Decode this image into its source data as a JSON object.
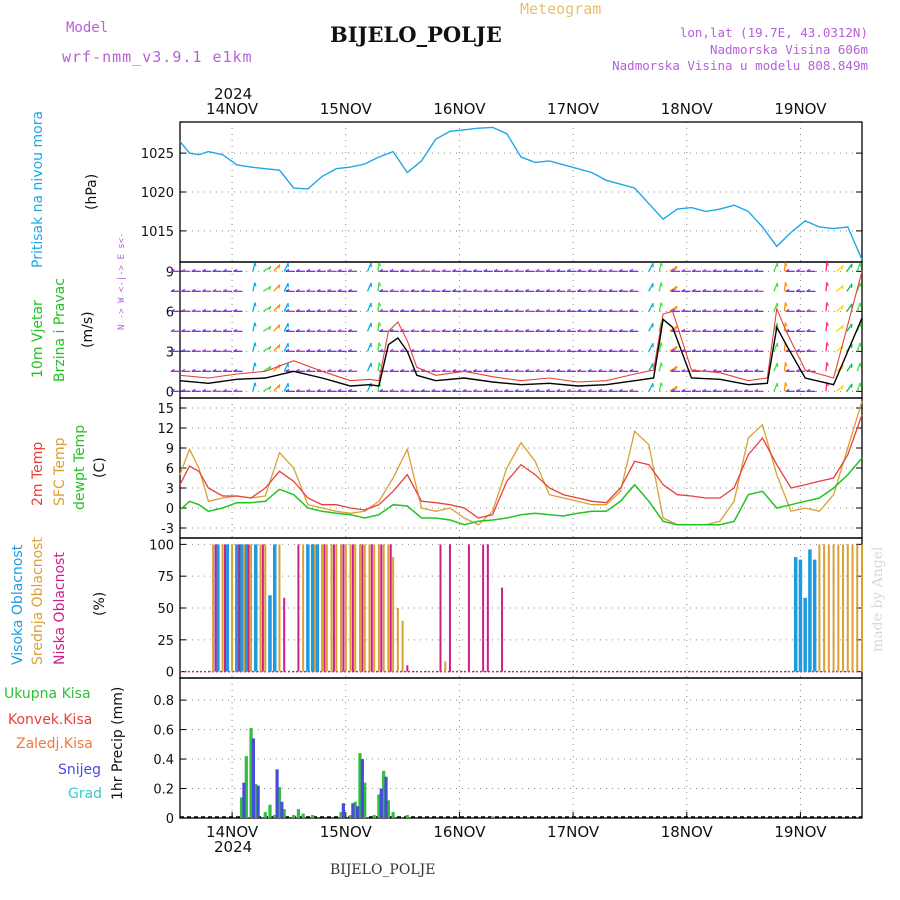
{
  "header": {
    "model_label": "Model",
    "model_name": "wrf-nmm_v3.9.1 e1km",
    "title": "BIJELO_POLJE",
    "meteogram_label": "Meteogram",
    "coords": "lon,lat (19.7E, 43.0312N)",
    "elevation": "Nadmorska Visina 606m",
    "model_elevation": "Nadmorska Visina u modelu 808.849m",
    "year_top": "2024",
    "year_bottom": "2024",
    "footer_station": "BIJELO_POLJE",
    "watermark": "made by Angel"
  },
  "colors": {
    "pressure": "#1ea7e8",
    "temp2m": "#e8403a",
    "sfc": "#d9a035",
    "dewpt": "#22c322",
    "high_cloud": "#1e9be0",
    "mid_cloud": "#d9a035",
    "low_cloud": "#cc1f8c",
    "total_precip": "#2fbf3a",
    "conv_precip": "#e8403a",
    "frozen_precip": "#ee7a3a",
    "snow": "#4a4adb",
    "hail": "#3ac8c8",
    "wind_line": "#000000",
    "title_purple": "#b860d8",
    "meteogram_gold": "#e8c06a"
  },
  "chart_data": [
    {
      "type": "line",
      "name": "pressure-panel",
      "ylabel": "Pritisak na nivou mora",
      "unit": "(hPa)",
      "yticks": [
        1015,
        1020,
        1025
      ],
      "ylim": [
        1011,
        1029
      ],
      "x_labels": [
        "14NOV",
        "15NOV",
        "16NOV",
        "17NOV",
        "18NOV",
        "19NOV"
      ],
      "series": [
        {
          "color_key": "pressure",
          "x": [
            0,
            2,
            4,
            6,
            9,
            12,
            15,
            18,
            21,
            24,
            27,
            30,
            33,
            36,
            39,
            42,
            45,
            48,
            51,
            54,
            57,
            60,
            63,
            66,
            69,
            72,
            75,
            78,
            81,
            84,
            87,
            90,
            93,
            96,
            99,
            102,
            105,
            108,
            111,
            114,
            117,
            120,
            123,
            126,
            129,
            132,
            135,
            138,
            141,
            144
          ],
          "values": [
            1026.5,
            1025,
            1024.8,
            1025.2,
            1024.8,
            1023.5,
            1023.2,
            1023,
            1022.8,
            1020.5,
            1020.4,
            1022,
            1023,
            1023.2,
            1023.6,
            1024.5,
            1025.2,
            1022.5,
            1024,
            1026.8,
            1027.8,
            1028,
            1028.2,
            1028.3,
            1027.5,
            1024.5,
            1023.8,
            1024,
            1023.5,
            1023,
            1022.5,
            1021.5,
            1021,
            1020.5,
            1018.5,
            1016.5,
            1017.8,
            1018,
            1017.5,
            1017.8,
            1018.3,
            1017.5,
            1015.5,
            1013,
            1014.8,
            1016.3,
            1015.5,
            1015.3,
            1015.5,
            1011.3
          ]
        }
      ]
    },
    {
      "type": "line",
      "name": "wind-panel",
      "ylabel": "10m Vjetar",
      "ylabel2": "Brzina i Pravac",
      "unit": "(m/s)",
      "compass": "N ->  W <-|-> E  s<-",
      "yticks": [
        0,
        3,
        6,
        9
      ],
      "ylim": [
        -0.5,
        9.7
      ],
      "arrow_rows": [
        0,
        1.5,
        3,
        4.5,
        6,
        7.5,
        9
      ],
      "series": [
        {
          "name": "wind-speed",
          "color_key": "wind_line",
          "x": [
            0,
            6,
            12,
            18,
            24,
            30,
            36,
            40,
            42,
            44,
            46,
            48,
            50,
            54,
            60,
            66,
            72,
            78,
            84,
            90,
            96,
            100,
            102,
            104,
            108,
            114,
            120,
            124,
            126,
            128,
            132,
            138,
            144
          ],
          "values": [
            0.8,
            0.6,
            0.9,
            1.0,
            1.5,
            1.0,
            0.4,
            0.5,
            0.4,
            3.5,
            4.0,
            3.0,
            1.2,
            0.8,
            1.0,
            0.7,
            0.5,
            0.6,
            0.4,
            0.5,
            0.8,
            1.0,
            5.4,
            4.8,
            1.0,
            0.9,
            0.5,
            0.6,
            4.8,
            3.5,
            1.0,
            0.5,
            5.5
          ]
        },
        {
          "name": "wind-gust",
          "color_key": "temp2m",
          "x": [
            0,
            6,
            12,
            18,
            24,
            30,
            36,
            40,
            42,
            44,
            46,
            48,
            50,
            54,
            60,
            66,
            72,
            78,
            84,
            90,
            96,
            100,
            102,
            104,
            108,
            114,
            120,
            124,
            126,
            128,
            132,
            138,
            144
          ],
          "values": [
            1.2,
            1.0,
            1.3,
            1.5,
            2.3,
            1.5,
            0.8,
            0.9,
            0.8,
            4.5,
            5.2,
            3.8,
            1.8,
            1.2,
            1.5,
            1.1,
            0.8,
            1.0,
            0.7,
            0.8,
            1.3,
            1.6,
            5.8,
            6.0,
            1.6,
            1.4,
            0.8,
            1.0,
            6.2,
            4.5,
            1.6,
            1.0,
            9.0
          ]
        }
      ]
    },
    {
      "type": "line",
      "name": "temperature-panel",
      "ylabel": "2m Temp",
      "ylabel2": "SFC Temp",
      "ylabel3": "dewpt Temp",
      "unit": "(C)",
      "yticks": [
        -3,
        0,
        3,
        6,
        9,
        12,
        15
      ],
      "ylim": [
        -4.5,
        16.5
      ],
      "series": [
        {
          "name": "2m Temp",
          "color_key": "temp2m",
          "x": [
            0,
            2,
            4,
            6,
            9,
            12,
            15,
            18,
            21,
            24,
            27,
            30,
            33,
            36,
            39,
            42,
            45,
            48,
            51,
            54,
            57,
            60,
            63,
            66,
            69,
            72,
            75,
            78,
            81,
            84,
            87,
            90,
            93,
            96,
            99,
            102,
            105,
            108,
            111,
            114,
            117,
            120,
            123,
            126,
            129,
            132,
            135,
            138,
            141,
            144
          ],
          "values": [
            3.5,
            6.3,
            5.5,
            3.0,
            1.8,
            1.8,
            1.5,
            3.0,
            5.5,
            4.0,
            1.5,
            0.5,
            0.5,
            0.0,
            -0.3,
            0.5,
            2.5,
            5.0,
            1.0,
            0.8,
            0.5,
            0.0,
            -1.5,
            -1.0,
            4.0,
            6.5,
            5.0,
            3.0,
            2.0,
            1.5,
            1.0,
            0.8,
            3.0,
            7.0,
            6.5,
            3.5,
            2.0,
            1.8,
            1.5,
            1.5,
            3.0,
            8.0,
            10.5,
            6.5,
            3.0,
            3.5,
            4.0,
            4.5,
            8.0,
            14.0
          ]
        },
        {
          "name": "SFC Temp",
          "color_key": "sfc",
          "x": [
            0,
            2,
            4,
            6,
            9,
            12,
            15,
            18,
            21,
            24,
            27,
            30,
            33,
            36,
            39,
            42,
            45,
            48,
            51,
            54,
            57,
            60,
            63,
            66,
            69,
            72,
            75,
            78,
            81,
            84,
            87,
            90,
            93,
            96,
            99,
            102,
            105,
            108,
            111,
            114,
            117,
            120,
            123,
            126,
            129,
            132,
            135,
            138,
            141,
            144
          ],
          "values": [
            5.0,
            8.8,
            6.0,
            1.0,
            1.5,
            1.8,
            1.5,
            1.8,
            8.3,
            6.0,
            0.5,
            0.0,
            -0.5,
            -0.8,
            -0.5,
            1.0,
            4.5,
            8.8,
            0.0,
            -0.5,
            0.0,
            -1.5,
            -2.5,
            -0.5,
            6.0,
            9.8,
            7.0,
            2.0,
            1.5,
            1.0,
            0.5,
            0.5,
            2.5,
            11.5,
            9.5,
            -1.5,
            -2.5,
            -2.5,
            -2.5,
            -2.0,
            1.0,
            10.5,
            12.5,
            5.0,
            -0.5,
            0.0,
            -0.5,
            2.0,
            9.0,
            16.0
          ]
        },
        {
          "name": "dewpt Temp",
          "color_key": "dewpt",
          "x": [
            0,
            2,
            4,
            6,
            9,
            12,
            15,
            18,
            21,
            24,
            27,
            30,
            33,
            36,
            39,
            42,
            45,
            48,
            51,
            54,
            57,
            60,
            63,
            66,
            69,
            72,
            75,
            78,
            81,
            84,
            87,
            90,
            93,
            96,
            99,
            102,
            105,
            108,
            111,
            114,
            117,
            120,
            123,
            126,
            129,
            132,
            135,
            138,
            141,
            144
          ],
          "values": [
            -0.3,
            1.0,
            0.5,
            -0.5,
            0.0,
            0.8,
            0.8,
            1.0,
            2.8,
            2.0,
            0.0,
            -0.5,
            -0.8,
            -1.0,
            -1.5,
            -1.0,
            0.5,
            0.3,
            -1.5,
            -1.5,
            -1.8,
            -2.5,
            -2.0,
            -1.8,
            -1.5,
            -1.0,
            -0.8,
            -1.0,
            -1.2,
            -0.8,
            -0.5,
            -0.5,
            1.0,
            3.5,
            1.0,
            -2.0,
            -2.5,
            -2.5,
            -2.5,
            -2.5,
            -2.0,
            2.0,
            2.5,
            0.0,
            0.5,
            1.0,
            1.5,
            3.0,
            5.0,
            7.5
          ]
        }
      ]
    },
    {
      "type": "bar",
      "name": "cloud-panel",
      "ylabel": "Visoka Oblacnost",
      "ylabel2": "Srednja Oblacnost",
      "ylabel3": "Niska Oblacnost",
      "unit": "(%)",
      "yticks": [
        0,
        25,
        50,
        75,
        100
      ],
      "ylim": [
        -5,
        105
      ],
      "series": [
        {
          "name": "Visoka Oblacnost",
          "color_key": "high_cloud",
          "x": [
            8,
            10,
            12,
            13,
            14,
            16,
            19,
            20,
            27,
            28,
            29,
            130,
            131,
            132,
            133,
            134
          ],
          "values": [
            100,
            100,
            100,
            100,
            100,
            100,
            60,
            100,
            100,
            100,
            100,
            90,
            88,
            58,
            96,
            88
          ]
        },
        {
          "name": "Srednja Oblacnost",
          "color_key": "mid_cloud",
          "x": [
            7,
            9,
            11,
            13.5,
            15,
            17,
            18,
            21,
            26,
            28.5,
            30,
            31,
            32,
            33,
            34,
            35,
            36,
            37,
            38,
            39,
            40,
            41,
            42,
            43,
            44,
            45,
            46,
            47,
            56,
            135,
            136,
            137,
            138,
            139,
            140,
            141,
            142,
            143,
            144
          ],
          "values": [
            100,
            100,
            100,
            100,
            100,
            100,
            100,
            100,
            100,
            100,
            100,
            100,
            100,
            100,
            100,
            100,
            100,
            100,
            100,
            100,
            100,
            100,
            100,
            100,
            100,
            90,
            50,
            40,
            8,
            100,
            100,
            100,
            100,
            100,
            100,
            100,
            100,
            100,
            100
          ]
        },
        {
          "name": "Niska Oblacnost",
          "color_key": "low_cloud",
          "x": [
            7.5,
            9.5,
            12.5,
            14.5,
            17.5,
            22,
            25,
            30.5,
            32.5,
            34.5,
            36.5,
            38.5,
            40.5,
            42.5,
            44.5,
            48,
            55,
            57,
            61,
            64,
            65,
            68
          ],
          "values": [
            100,
            100,
            100,
            100,
            100,
            58,
            100,
            100,
            100,
            100,
            100,
            100,
            100,
            100,
            100,
            5,
            100,
            100,
            100,
            100,
            100,
            66
          ]
        }
      ]
    },
    {
      "type": "bar",
      "name": "precip-panel",
      "ylabel": "1hr Precip (mm)",
      "legend": [
        "Ukupna Kisa",
        "Konvek.Kisa",
        "Zaledj.Kisa",
        "Snijeg",
        "Grad"
      ],
      "yticks": [
        0,
        0.2,
        0.4,
        0.6,
        0.8
      ],
      "ylim": [
        0,
        0.95
      ],
      "series": [
        {
          "name": "Ukupna Kisa",
          "color_key": "total_precip",
          "x": [
            13,
            14,
            15,
            16,
            18,
            19,
            20,
            21,
            22,
            24,
            25,
            26,
            28,
            34,
            36,
            37,
            38,
            39,
            41,
            42,
            43,
            44,
            45,
            48,
            66
          ],
          "values": [
            0.14,
            0.42,
            0.61,
            0.23,
            0.04,
            0.09,
            0.02,
            0.21,
            0.06,
            0.02,
            0.06,
            0.03,
            0.02,
            0.04,
            0.02,
            0.11,
            0.44,
            0.24,
            0.02,
            0.16,
            0.32,
            0.12,
            0.04,
            0.02,
            0.01
          ]
        },
        {
          "name": "Snijeg",
          "color_key": "snow",
          "x": [
            13.5,
            15.5,
            16.5,
            20.5,
            21.5,
            34.5,
            36.5,
            37.5,
            38.5,
            42.5,
            43.5
          ],
          "values": [
            0.24,
            0.54,
            0.22,
            0.33,
            0.11,
            0.1,
            0.1,
            0.08,
            0.4,
            0.2,
            0.28
          ]
        }
      ]
    }
  ]
}
